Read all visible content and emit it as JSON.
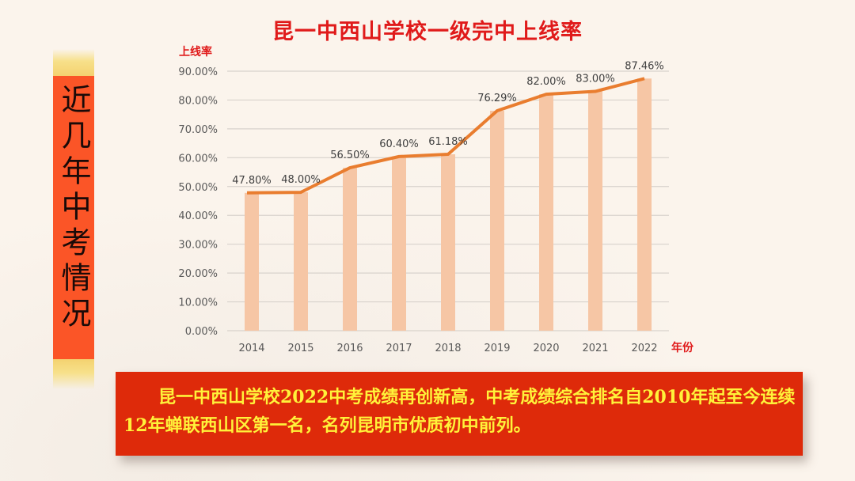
{
  "side_banner": {
    "label": "近几年中考情况"
  },
  "summary": {
    "text": "昆一中西山学校2022中考成绩再创新高，中考成绩综合排名自2010年起至今连续12年蝉联西山区第一名，名列昆明市优质初中前列。"
  },
  "colors": {
    "title": "#e01a1a",
    "bar": "#f6c6a5",
    "line": "#e97d2f",
    "grid": "#d8d2cc",
    "tick_text": "#595959",
    "data_label": "#404040",
    "banner": "#fb5527",
    "summary_bg": "#de2a0a",
    "summary_text": "#fff23a"
  },
  "chart_data": {
    "type": "bar",
    "title": "昆一中西山学校一级完中上线率",
    "xlabel": "年份",
    "ylabel": "上线率",
    "categories": [
      "2014",
      "2015",
      "2016",
      "2017",
      "2018",
      "2019",
      "2020",
      "2021",
      "2022"
    ],
    "series": [
      {
        "name": "上线率 (bar)",
        "type": "bar",
        "values": [
          47.8,
          48.0,
          56.5,
          60.4,
          61.18,
          76.29,
          82.0,
          83.0,
          87.46
        ]
      },
      {
        "name": "上线率 (line)",
        "type": "line",
        "values": [
          47.8,
          48.0,
          56.5,
          60.4,
          61.18,
          76.29,
          82.0,
          83.0,
          87.46
        ]
      }
    ],
    "data_labels": [
      "47.80%",
      "48.00%",
      "56.50%",
      "60.40%",
      "61.18%",
      "76.29%",
      "82.00%",
      "83.00%",
      "87.46%"
    ],
    "yticks": [
      "0.00%",
      "10.00%",
      "20.00%",
      "30.00%",
      "40.00%",
      "50.00%",
      "60.00%",
      "70.00%",
      "80.00%",
      "90.00%"
    ],
    "ylim": [
      0,
      90
    ],
    "grid": true,
    "legend": "none"
  }
}
